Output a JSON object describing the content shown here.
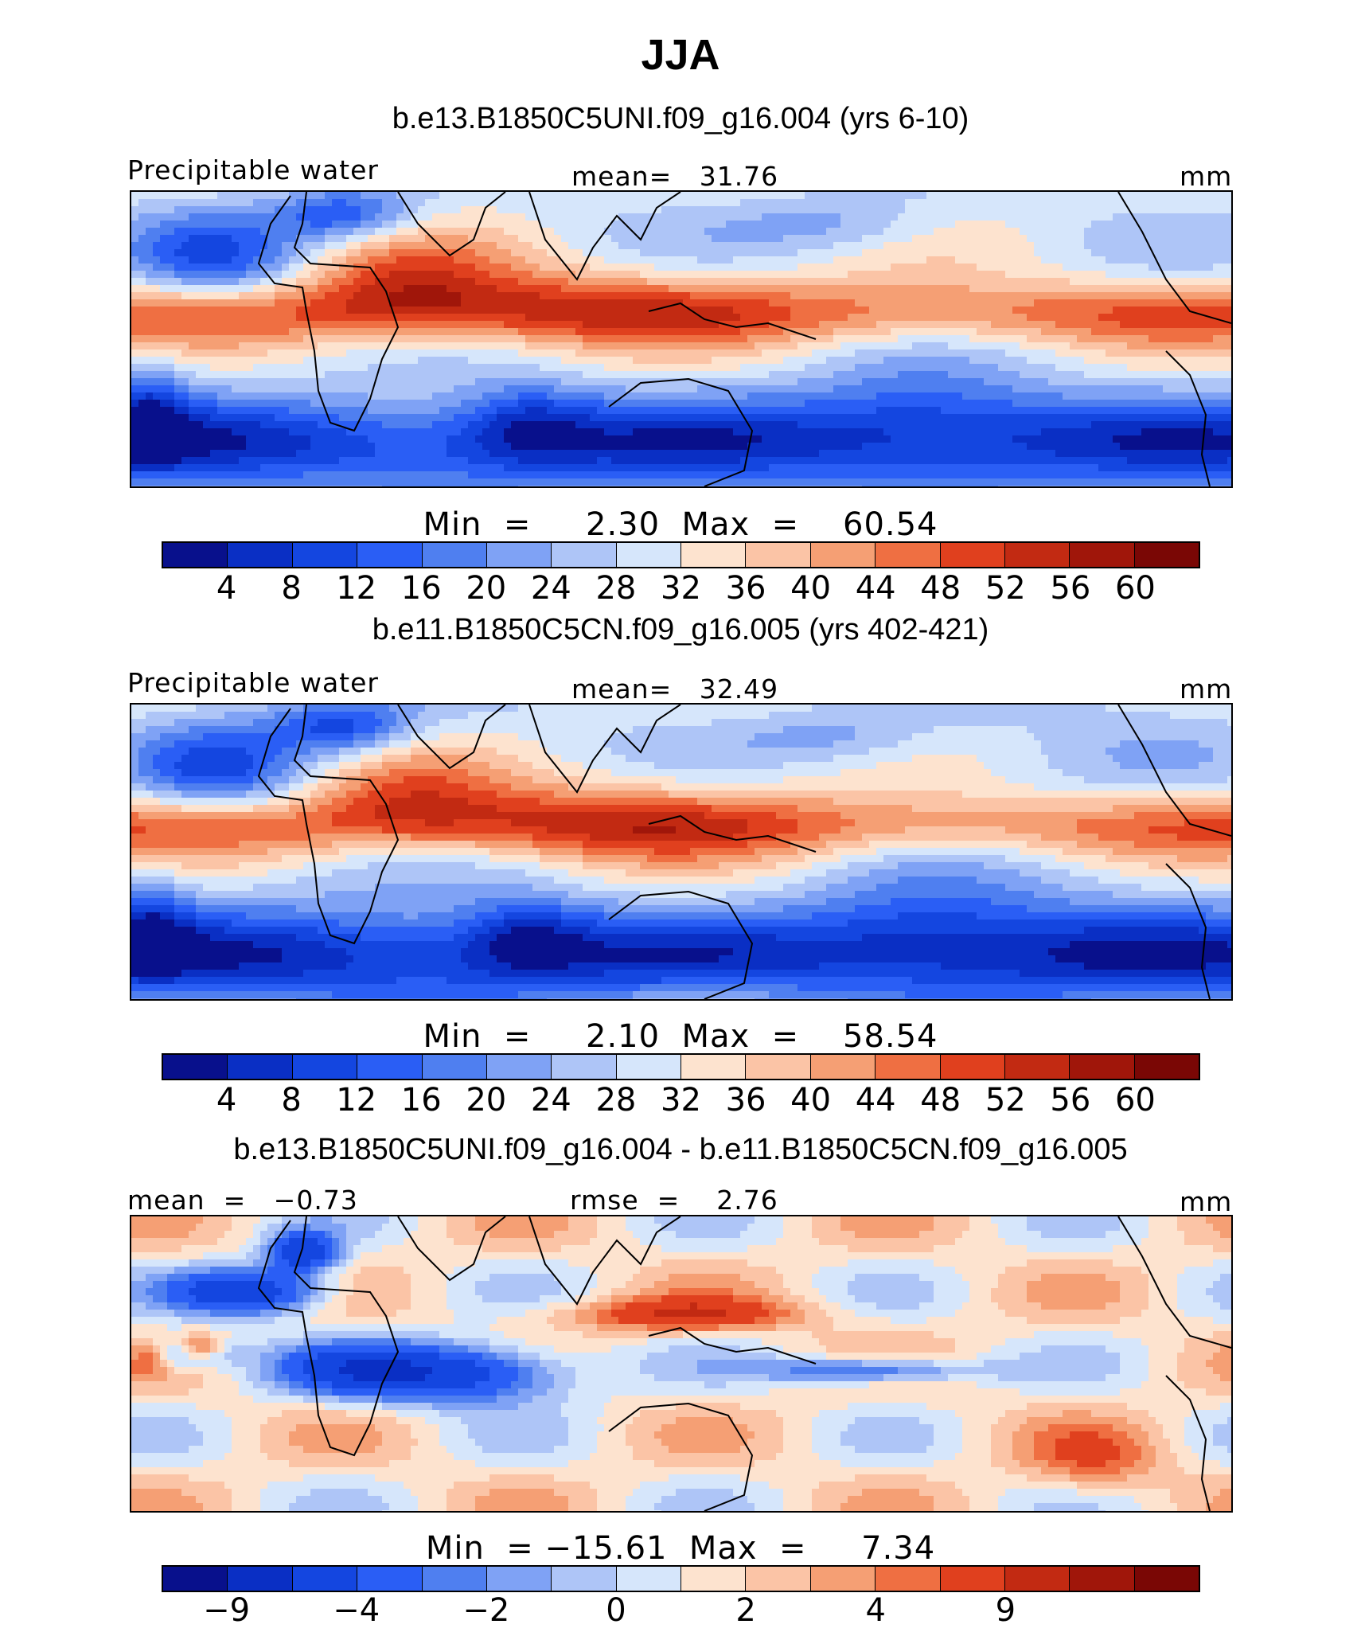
{
  "title": "JJA",
  "chart_data": [
    {
      "type": "heatmap",
      "title": "b.e13.B1850C5UNI.f09_g16.004 (yrs 6-10)",
      "left_label": "Precipitable water",
      "center_label": "mean=   31.76",
      "units": "mm",
      "stat_mean": 31.76,
      "min_max_text": "Min  =     2.30  Max  =    60.54",
      "min": 2.3,
      "max": 60.54,
      "levels": [
        "4",
        "8",
        "12",
        "16",
        "20",
        "24",
        "28",
        "32",
        "36",
        "40",
        "44",
        "48",
        "52",
        "56",
        "60"
      ],
      "colors": [
        "#08108c",
        "#0a2fc4",
        "#1446e0",
        "#2a5ef5",
        "#4f7ff0",
        "#7fa2f5",
        "#aec5f7",
        "#d6e6fb",
        "#fde3cf",
        "#fbc4a6",
        "#f59f74",
        "#ef6f42",
        "#e0401e",
        "#c22a12",
        "#a0160a",
        "#7a0705"
      ],
      "field": "absolute"
    },
    {
      "type": "heatmap",
      "title": "b.e11.B1850C5CN.f09_g16.005 (yrs 402-421)",
      "left_label": "Precipitable water",
      "center_label": "mean=   32.49",
      "units": "mm",
      "stat_mean": 32.49,
      "min_max_text": "Min  =     2.10  Max  =    58.54",
      "min": 2.1,
      "max": 58.54,
      "levels": [
        "4",
        "8",
        "12",
        "16",
        "20",
        "24",
        "28",
        "32",
        "36",
        "40",
        "44",
        "48",
        "52",
        "56",
        "60"
      ],
      "colors": [
        "#08108c",
        "#0a2fc4",
        "#1446e0",
        "#2a5ef5",
        "#4f7ff0",
        "#7fa2f5",
        "#aec5f7",
        "#d6e6fb",
        "#fde3cf",
        "#fbc4a6",
        "#f59f74",
        "#ef6f42",
        "#e0401e",
        "#c22a12",
        "#a0160a",
        "#7a0705"
      ],
      "field": "absolute"
    },
    {
      "type": "heatmap",
      "title": "b.e13.B1850C5UNI.f09_g16.004 - b.e11.B1850C5CN.f09_g16.005",
      "left_label": "mean  =   −0.73",
      "center_label": "rmse  =    2.76",
      "units": "mm",
      "stat_mean": -0.73,
      "stat_rmse": 2.76,
      "min_max_text": "Min  = −15.61  Max  =     7.34",
      "min": -15.61,
      "max": 7.34,
      "levels": [
        "−9",
        "−4",
        "−2",
        "0",
        "2",
        "4",
        "9"
      ],
      "level_ticks": [
        "−9",
        "",
        "−4",
        "",
        "−2",
        "",
        "0",
        "",
        "2",
        "",
        "4",
        "",
        "9"
      ],
      "colors": [
        "#08108c",
        "#0a2fc4",
        "#1446e0",
        "#2a5ef5",
        "#4f7ff0",
        "#7fa2f5",
        "#aec5f7",
        "#d6e6fb",
        "#fde3cf",
        "#fbc4a6",
        "#f59f74",
        "#ef6f42",
        "#e0401e",
        "#c22a12",
        "#a0160a",
        "#7a0705"
      ],
      "field": "difference"
    }
  ]
}
